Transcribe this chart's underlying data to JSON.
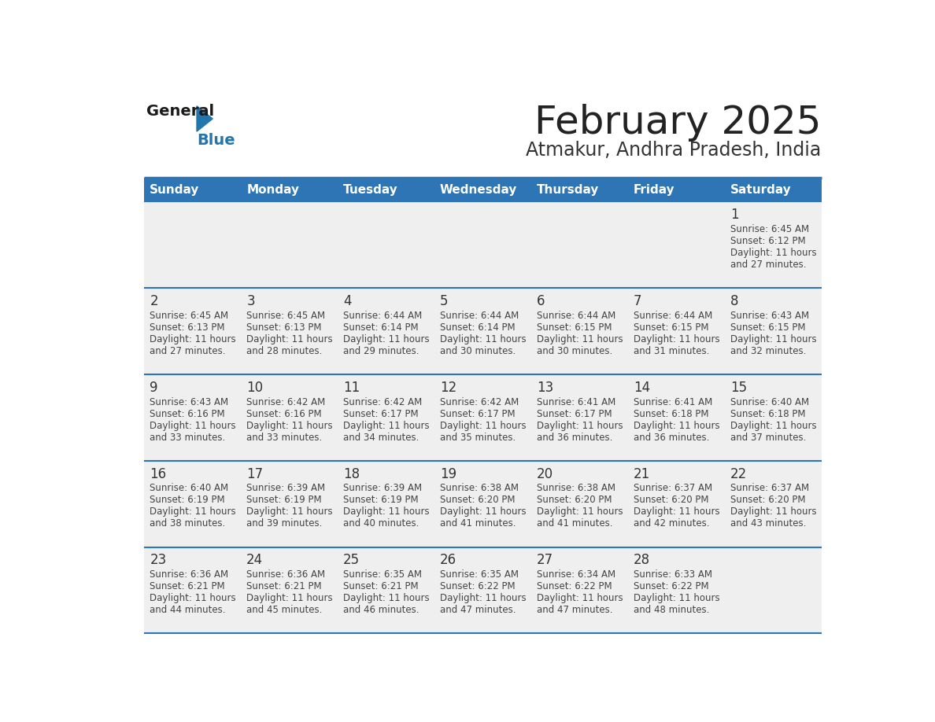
{
  "title": "February 2025",
  "subtitle": "Atmakur, Andhra Pradesh, India",
  "header_bg": "#2E75B6",
  "header_text_color": "#FFFFFF",
  "weekdays": [
    "Sunday",
    "Monday",
    "Tuesday",
    "Wednesday",
    "Thursday",
    "Friday",
    "Saturday"
  ],
  "row_bg": "#EFEFEF",
  "cell_border_color": "#2E75B6",
  "day_text_color": "#333333",
  "info_text_color": "#444444",
  "logo_blue": "#2176AE",
  "logo_dark": "#1A1A1A",
  "days": [
    {
      "day": 1,
      "col": 6,
      "row": 0,
      "sunrise": "6:45 AM",
      "sunset": "6:12 PM",
      "daylight_h": "11",
      "daylight_m": "27"
    },
    {
      "day": 2,
      "col": 0,
      "row": 1,
      "sunrise": "6:45 AM",
      "sunset": "6:13 PM",
      "daylight_h": "11",
      "daylight_m": "27"
    },
    {
      "day": 3,
      "col": 1,
      "row": 1,
      "sunrise": "6:45 AM",
      "sunset": "6:13 PM",
      "daylight_h": "11",
      "daylight_m": "28"
    },
    {
      "day": 4,
      "col": 2,
      "row": 1,
      "sunrise": "6:44 AM",
      "sunset": "6:14 PM",
      "daylight_h": "11",
      "daylight_m": "29"
    },
    {
      "day": 5,
      "col": 3,
      "row": 1,
      "sunrise": "6:44 AM",
      "sunset": "6:14 PM",
      "daylight_h": "11",
      "daylight_m": "30"
    },
    {
      "day": 6,
      "col": 4,
      "row": 1,
      "sunrise": "6:44 AM",
      "sunset": "6:15 PM",
      "daylight_h": "11",
      "daylight_m": "30"
    },
    {
      "day": 7,
      "col": 5,
      "row": 1,
      "sunrise": "6:44 AM",
      "sunset": "6:15 PM",
      "daylight_h": "11",
      "daylight_m": "31"
    },
    {
      "day": 8,
      "col": 6,
      "row": 1,
      "sunrise": "6:43 AM",
      "sunset": "6:15 PM",
      "daylight_h": "11",
      "daylight_m": "32"
    },
    {
      "day": 9,
      "col": 0,
      "row": 2,
      "sunrise": "6:43 AM",
      "sunset": "6:16 PM",
      "daylight_h": "11",
      "daylight_m": "33"
    },
    {
      "day": 10,
      "col": 1,
      "row": 2,
      "sunrise": "6:42 AM",
      "sunset": "6:16 PM",
      "daylight_h": "11",
      "daylight_m": "33"
    },
    {
      "day": 11,
      "col": 2,
      "row": 2,
      "sunrise": "6:42 AM",
      "sunset": "6:17 PM",
      "daylight_h": "11",
      "daylight_m": "34"
    },
    {
      "day": 12,
      "col": 3,
      "row": 2,
      "sunrise": "6:42 AM",
      "sunset": "6:17 PM",
      "daylight_h": "11",
      "daylight_m": "35"
    },
    {
      "day": 13,
      "col": 4,
      "row": 2,
      "sunrise": "6:41 AM",
      "sunset": "6:17 PM",
      "daylight_h": "11",
      "daylight_m": "36"
    },
    {
      "day": 14,
      "col": 5,
      "row": 2,
      "sunrise": "6:41 AM",
      "sunset": "6:18 PM",
      "daylight_h": "11",
      "daylight_m": "36"
    },
    {
      "day": 15,
      "col": 6,
      "row": 2,
      "sunrise": "6:40 AM",
      "sunset": "6:18 PM",
      "daylight_h": "11",
      "daylight_m": "37"
    },
    {
      "day": 16,
      "col": 0,
      "row": 3,
      "sunrise": "6:40 AM",
      "sunset": "6:19 PM",
      "daylight_h": "11",
      "daylight_m": "38"
    },
    {
      "day": 17,
      "col": 1,
      "row": 3,
      "sunrise": "6:39 AM",
      "sunset": "6:19 PM",
      "daylight_h": "11",
      "daylight_m": "39"
    },
    {
      "day": 18,
      "col": 2,
      "row": 3,
      "sunrise": "6:39 AM",
      "sunset": "6:19 PM",
      "daylight_h": "11",
      "daylight_m": "40"
    },
    {
      "day": 19,
      "col": 3,
      "row": 3,
      "sunrise": "6:38 AM",
      "sunset": "6:20 PM",
      "daylight_h": "11",
      "daylight_m": "41"
    },
    {
      "day": 20,
      "col": 4,
      "row": 3,
      "sunrise": "6:38 AM",
      "sunset": "6:20 PM",
      "daylight_h": "11",
      "daylight_m": "41"
    },
    {
      "day": 21,
      "col": 5,
      "row": 3,
      "sunrise": "6:37 AM",
      "sunset": "6:20 PM",
      "daylight_h": "11",
      "daylight_m": "42"
    },
    {
      "day": 22,
      "col": 6,
      "row": 3,
      "sunrise": "6:37 AM",
      "sunset": "6:20 PM",
      "daylight_h": "11",
      "daylight_m": "43"
    },
    {
      "day": 23,
      "col": 0,
      "row": 4,
      "sunrise": "6:36 AM",
      "sunset": "6:21 PM",
      "daylight_h": "11",
      "daylight_m": "44"
    },
    {
      "day": 24,
      "col": 1,
      "row": 4,
      "sunrise": "6:36 AM",
      "sunset": "6:21 PM",
      "daylight_h": "11",
      "daylight_m": "45"
    },
    {
      "day": 25,
      "col": 2,
      "row": 4,
      "sunrise": "6:35 AM",
      "sunset": "6:21 PM",
      "daylight_h": "11",
      "daylight_m": "46"
    },
    {
      "day": 26,
      "col": 3,
      "row": 4,
      "sunrise": "6:35 AM",
      "sunset": "6:22 PM",
      "daylight_h": "11",
      "daylight_m": "47"
    },
    {
      "day": 27,
      "col": 4,
      "row": 4,
      "sunrise": "6:34 AM",
      "sunset": "6:22 PM",
      "daylight_h": "11",
      "daylight_m": "47"
    },
    {
      "day": 28,
      "col": 5,
      "row": 4,
      "sunrise": "6:33 AM",
      "sunset": "6:22 PM",
      "daylight_h": "11",
      "daylight_m": "48"
    }
  ]
}
